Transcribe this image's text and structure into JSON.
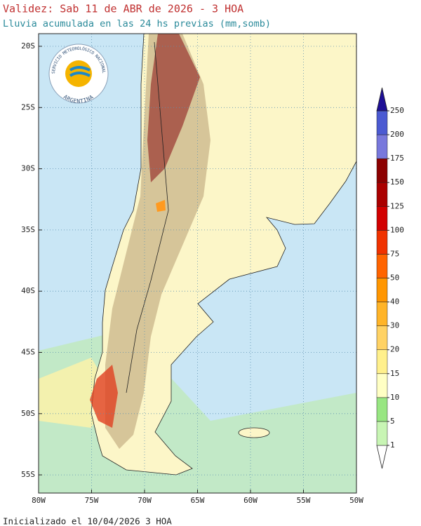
{
  "header": {
    "title": "Validez: Sab 11 de ABR de 2026 - 3 HOA",
    "subtitle": "Lluvia acumulada en las 24 hs previas (mm,somb)"
  },
  "logo": {
    "top": "SERVICIO METEOROLÓGICO NACIONAL",
    "bottom": "ARGENTINA"
  },
  "map": {
    "lat_labels": [
      "20S",
      "25S",
      "30S",
      "35S",
      "40S",
      "45S",
      "50S",
      "55S"
    ],
    "lon_labels": [
      "80W",
      "75W",
      "70W",
      "65W",
      "60W",
      "55W",
      "50W"
    ]
  },
  "colorbar": {
    "ticks": [
      1,
      5,
      10,
      15,
      20,
      30,
      40,
      50,
      75,
      100,
      125,
      150,
      175,
      200,
      250
    ],
    "colors": [
      "#c8f5b4",
      "#98e682",
      "#ffffc4",
      "#fff08c",
      "#ffd264",
      "#ffb428",
      "#ff9600",
      "#ff6400",
      "#f03200",
      "#d20000",
      "#aa0000",
      "#8c0000",
      "#7878dc",
      "#4b5ad2",
      "#2d28b4",
      "#1e0f96"
    ]
  },
  "footer": {
    "text": "Inicializado el 10/04/2026 3 HOA"
  }
}
